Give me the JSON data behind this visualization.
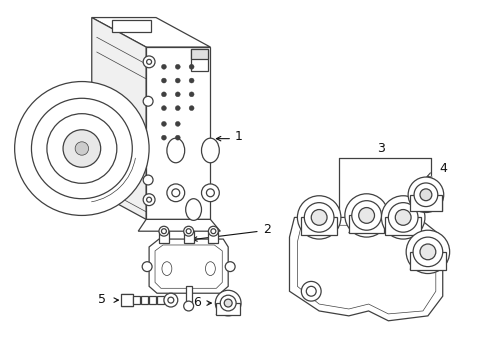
{
  "bg_color": "#ffffff",
  "line_color": "#404040",
  "text_color": "#111111",
  "fig_width": 4.9,
  "fig_height": 3.6,
  "dpi": 100
}
